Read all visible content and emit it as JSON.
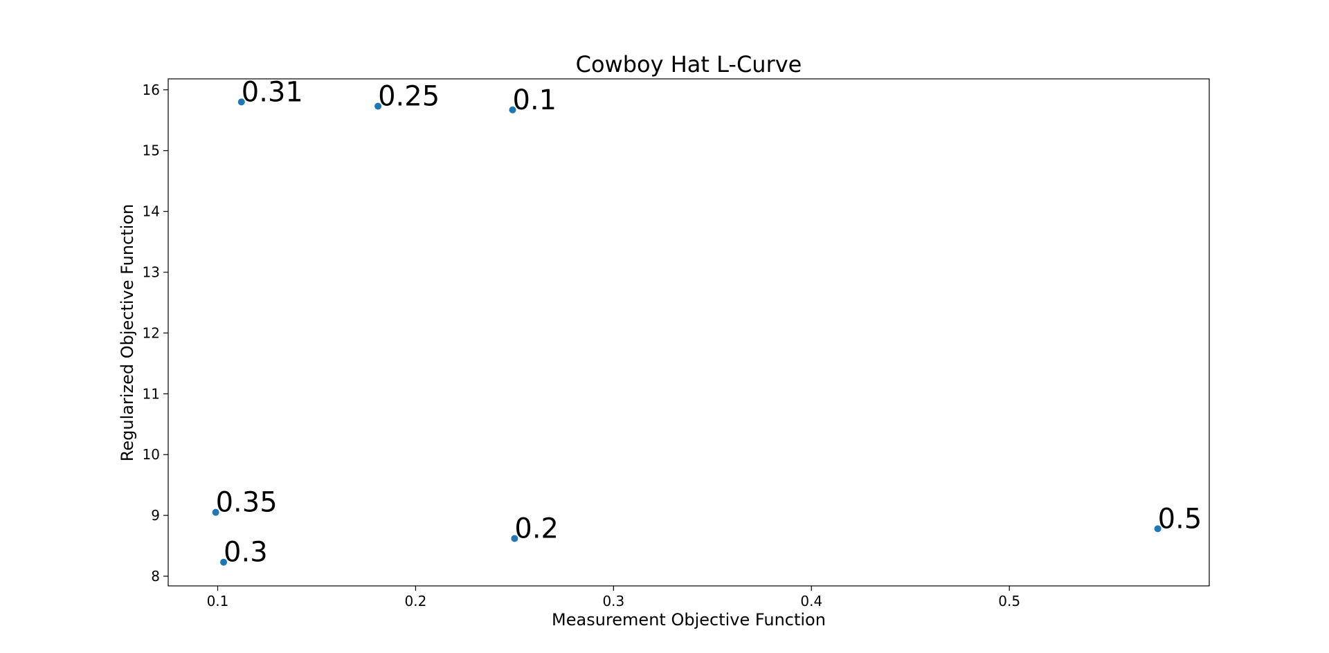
{
  "chart_data": {
    "type": "scatter",
    "title": "Cowboy Hat L-Curve",
    "xlabel": "Measurement Objective Function",
    "ylabel": "Regularized Objective Function",
    "xlim": [
      0.075,
      0.601
    ],
    "ylim": [
      7.84,
      16.18
    ],
    "xticks": [
      "0.1",
      "0.2",
      "0.3",
      "0.4",
      "0.5"
    ],
    "yticks": [
      "8",
      "9",
      "10",
      "11",
      "12",
      "13",
      "14",
      "15",
      "16"
    ],
    "grid": false,
    "marker_color": "#1f77b4",
    "series": [
      {
        "points": [
          {
            "x": 0.112,
            "y": 15.8,
            "label": "0.31"
          },
          {
            "x": 0.181,
            "y": 15.73,
            "label": "0.25"
          },
          {
            "x": 0.249,
            "y": 15.67,
            "label": "0.1"
          },
          {
            "x": 0.099,
            "y": 9.05,
            "label": "0.35"
          },
          {
            "x": 0.103,
            "y": 8.23,
            "label": "0.3"
          },
          {
            "x": 0.25,
            "y": 8.62,
            "label": "0.2"
          },
          {
            "x": 0.575,
            "y": 8.78,
            "label": "0.5"
          }
        ]
      }
    ]
  }
}
